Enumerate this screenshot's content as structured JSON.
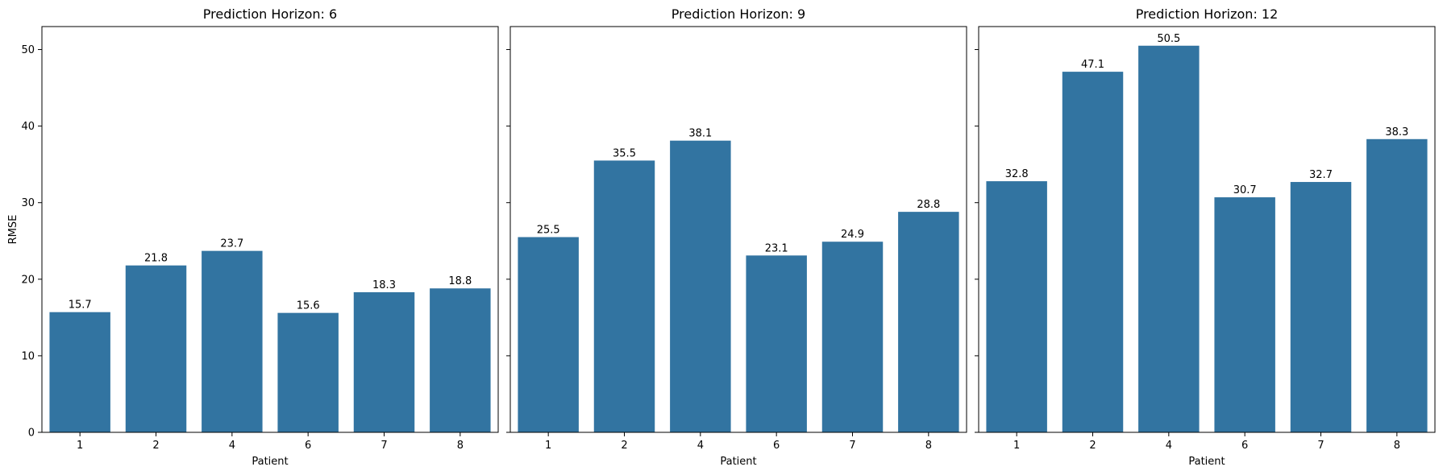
{
  "chart_data": [
    {
      "type": "bar",
      "title": "Prediction Horizon: 6",
      "xlabel": "Patient",
      "ylabel": "RMSE",
      "categories": [
        "1",
        "2",
        "4",
        "6",
        "7",
        "8"
      ],
      "values": [
        15.7,
        21.8,
        23.7,
        15.6,
        18.3,
        18.8
      ],
      "data_labels": [
        "15.7",
        "21.8",
        "23.7",
        "15.6",
        "18.3",
        "18.8"
      ],
      "ylim": [
        0,
        53
      ],
      "yticks": [
        0,
        10,
        20,
        30,
        40,
        50
      ],
      "color": "#3274a1"
    },
    {
      "type": "bar",
      "title": "Prediction Horizon: 9",
      "xlabel": "Patient",
      "ylabel": "",
      "categories": [
        "1",
        "2",
        "4",
        "6",
        "7",
        "8"
      ],
      "values": [
        25.5,
        35.5,
        38.1,
        23.1,
        24.9,
        28.8
      ],
      "data_labels": [
        "25.5",
        "35.5",
        "38.1",
        "23.1",
        "24.9",
        "28.8"
      ],
      "ylim": [
        0,
        53
      ],
      "yticks": [
        0,
        10,
        20,
        30,
        40,
        50
      ],
      "color": "#3274a1"
    },
    {
      "type": "bar",
      "title": "Prediction Horizon: 12",
      "xlabel": "Patient",
      "ylabel": "",
      "categories": [
        "1",
        "2",
        "4",
        "6",
        "7",
        "8"
      ],
      "values": [
        32.8,
        47.1,
        50.5,
        30.7,
        32.7,
        38.3
      ],
      "data_labels": [
        "32.8",
        "47.1",
        "50.5",
        "30.7",
        "32.7",
        "38.3"
      ],
      "ylim": [
        0,
        53
      ],
      "yticks": [
        0,
        10,
        20,
        30,
        40,
        50
      ],
      "color": "#3274a1"
    }
  ]
}
